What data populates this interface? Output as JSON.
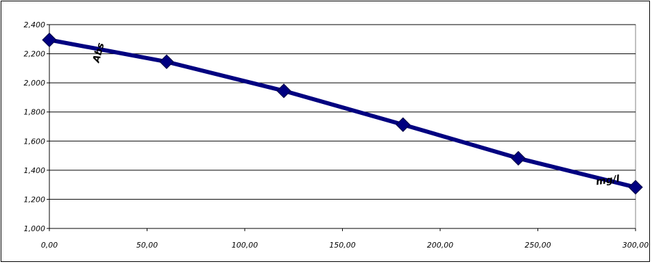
{
  "chart_data": {
    "type": "line",
    "xlabel": "mg/l",
    "ylabel": "Abs",
    "xlim": [
      0,
      300
    ],
    "ylim": [
      1.0,
      2.4
    ],
    "x_ticks": [
      0,
      50,
      100,
      150,
      200,
      250,
      300
    ],
    "y_ticks": [
      1.0,
      1.2,
      1.4,
      1.6,
      1.8,
      2.0,
      2.2,
      2.4
    ],
    "x_tick_labels": [
      "0,00",
      "50,00",
      "100,00",
      "150,00",
      "200,00",
      "250,00",
      "300,00"
    ],
    "y_tick_labels": [
      "1,000",
      "1,200",
      "1,400",
      "1,600",
      "1,800",
      "2,000",
      "2,200",
      "2,400"
    ],
    "grid": "horizontal",
    "series": [
      {
        "x": [
          0,
          60,
          120,
          181,
          240,
          300
        ],
        "y": [
          2.295,
          2.145,
          1.945,
          1.713,
          1.482,
          1.283
        ],
        "color": "#000080",
        "marker": "diamond"
      }
    ]
  }
}
